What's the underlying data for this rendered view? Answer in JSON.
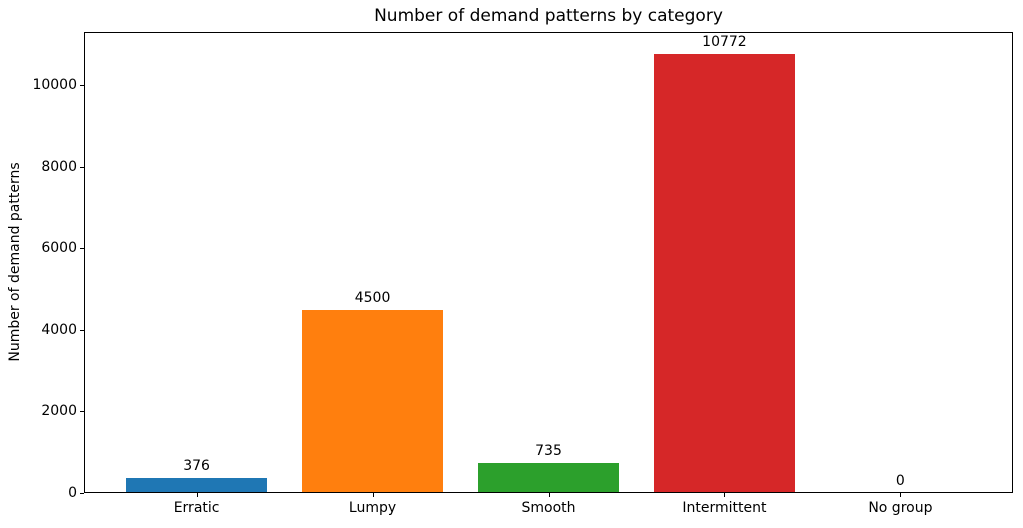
{
  "chart_data": {
    "type": "bar",
    "title": "Number of demand patterns by category",
    "xlabel": "",
    "ylabel": "Number of demand patterns",
    "categories": [
      "Erratic",
      "Lumpy",
      "Smooth",
      "Intermittent",
      "No group"
    ],
    "values": [
      376,
      4500,
      735,
      10772,
      0
    ],
    "value_labels": [
      "376",
      "4500",
      "735",
      "10772",
      "0"
    ],
    "bar_colors": [
      "#1f77b4",
      "#ff7f0e",
      "#2ca02c",
      "#d62728",
      "#9467bd"
    ],
    "yticks": [
      0,
      2000,
      4000,
      6000,
      8000,
      10000
    ],
    "ylim": [
      0,
      11310
    ],
    "grid": false,
    "legend_position": "none",
    "background_color": "#ffffff",
    "text_color": "#000000"
  }
}
